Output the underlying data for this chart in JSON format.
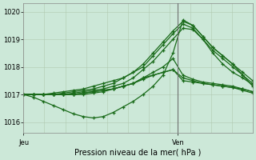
{
  "xlabel": "Pression niveau de la mer( hPa )",
  "bg_color": "#cce8d8",
  "grid_color": "#b8c8b8",
  "line_color": "#1a6b1a",
  "ylim": [
    1015.6,
    1020.3
  ],
  "yticks": [
    1016,
    1017,
    1018,
    1019,
    1020
  ],
  "ytick_labels": [
    "1016",
    "1017",
    "1018",
    "1019",
    "1020"
  ],
  "xlim": [
    0,
    23
  ],
  "vline_x": 15.5,
  "jeu_x": 0,
  "ven_x": 15.5,
  "series": [
    [
      1017.0,
      1017.0,
      1017.0,
      1017.05,
      1017.1,
      1017.15,
      1017.2,
      1017.3,
      1017.4,
      1017.5,
      1017.6,
      1017.8,
      1018.1,
      1018.5,
      1018.9,
      1019.3,
      1019.65,
      1019.5,
      1019.1,
      1018.7,
      1018.4,
      1018.1,
      1017.8,
      1017.5
    ],
    [
      1017.0,
      1017.0,
      1017.0,
      1017.0,
      1017.05,
      1017.1,
      1017.15,
      1017.2,
      1017.3,
      1017.4,
      1017.6,
      1017.8,
      1018.0,
      1018.4,
      1018.8,
      1019.2,
      1019.55,
      1019.4,
      1019.0,
      1018.6,
      1018.3,
      1018.0,
      1017.7,
      1017.4
    ],
    [
      1017.0,
      1017.0,
      1017.0,
      1017.0,
      1017.0,
      1017.05,
      1017.1,
      1017.15,
      1017.2,
      1017.3,
      1017.4,
      1017.6,
      1017.9,
      1018.2,
      1018.6,
      1019.0,
      1019.4,
      1019.35,
      1019.0,
      1018.5,
      1018.1,
      1017.8,
      1017.6,
      1017.35
    ],
    [
      1017.0,
      1017.0,
      1017.0,
      1017.0,
      1017.0,
      1017.0,
      1017.05,
      1017.1,
      1017.15,
      1017.2,
      1017.3,
      1017.4,
      1017.6,
      1017.8,
      1018.0,
      1018.3,
      1017.7,
      1017.55,
      1017.45,
      1017.4,
      1017.35,
      1017.3,
      1017.2,
      1017.1
    ],
    [
      1017.0,
      1017.0,
      1017.0,
      1017.0,
      1017.0,
      1017.0,
      1017.05,
      1017.1,
      1017.15,
      1017.2,
      1017.3,
      1017.4,
      1017.6,
      1017.7,
      1017.8,
      1017.9,
      1017.6,
      1017.5,
      1017.4,
      1017.35,
      1017.3,
      1017.25,
      1017.2,
      1017.1
    ],
    [
      1017.0,
      1016.9,
      1016.75,
      1016.6,
      1016.45,
      1016.3,
      1016.2,
      1016.15,
      1016.2,
      1016.35,
      1016.55,
      1016.75,
      1017.0,
      1017.3,
      1017.7,
      1018.5,
      1019.7,
      1019.5,
      1019.1,
      1018.7,
      1018.4,
      1018.1,
      1017.7,
      1017.3
    ],
    [
      1017.0,
      1017.0,
      1017.0,
      1017.0,
      1017.0,
      1017.0,
      1017.0,
      1017.05,
      1017.1,
      1017.2,
      1017.3,
      1017.4,
      1017.55,
      1017.7,
      1017.8,
      1017.9,
      1017.5,
      1017.45,
      1017.4,
      1017.35,
      1017.3,
      1017.25,
      1017.15,
      1017.05
    ]
  ],
  "n_points": 24
}
